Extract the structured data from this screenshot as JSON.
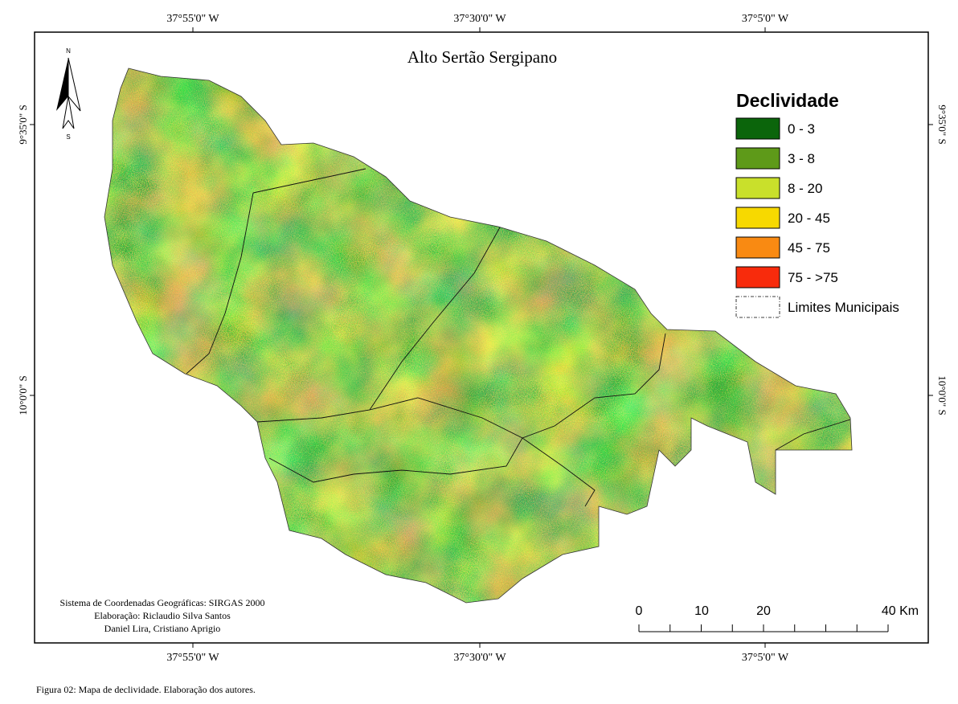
{
  "title": "Alto Sertão Sergipano",
  "legend": {
    "title": "Declividade",
    "items": [
      {
        "label": "0 - 3",
        "color": "#0b650b"
      },
      {
        "label": "3 - 8",
        "color": "#5e9a19"
      },
      {
        "label": "8 - 20",
        "color": "#c9e02b"
      },
      {
        "label": "20 - 45",
        "color": "#f7d900"
      },
      {
        "label": "45 - 75",
        "color": "#f98a12"
      },
      {
        "label": "75 - >75",
        "color": "#f82b0c"
      },
      {
        "label": "Limites Municipais"
      }
    ]
  },
  "coordinates": {
    "top": [
      "37°55'0\" W",
      "37°30'0\" W",
      "37°5'0\" W"
    ],
    "bottom": [
      "37°55'0\" W",
      "37°30'0\" W",
      "37°5'0\" W"
    ],
    "left": [
      "9°35'0\" S",
      "10°0'0\" S"
    ],
    "right": [
      "9°35'0\" S",
      "10°0'0\" S"
    ]
  },
  "north_arrow": {
    "n": "N",
    "s": "S"
  },
  "scale_bar": {
    "labels": [
      "0",
      "10",
      "20",
      "40 Km"
    ]
  },
  "credits": [
    "Sistema de Coordenadas Geográficas: SIRGAS 2000",
    "Elaboração: Riclaudio Silva Santos",
    "Daniel Lira, Cristiano Aprigio"
  ],
  "caption": "Figura 02: Mapa de declividade. Elaboração dos autores."
}
